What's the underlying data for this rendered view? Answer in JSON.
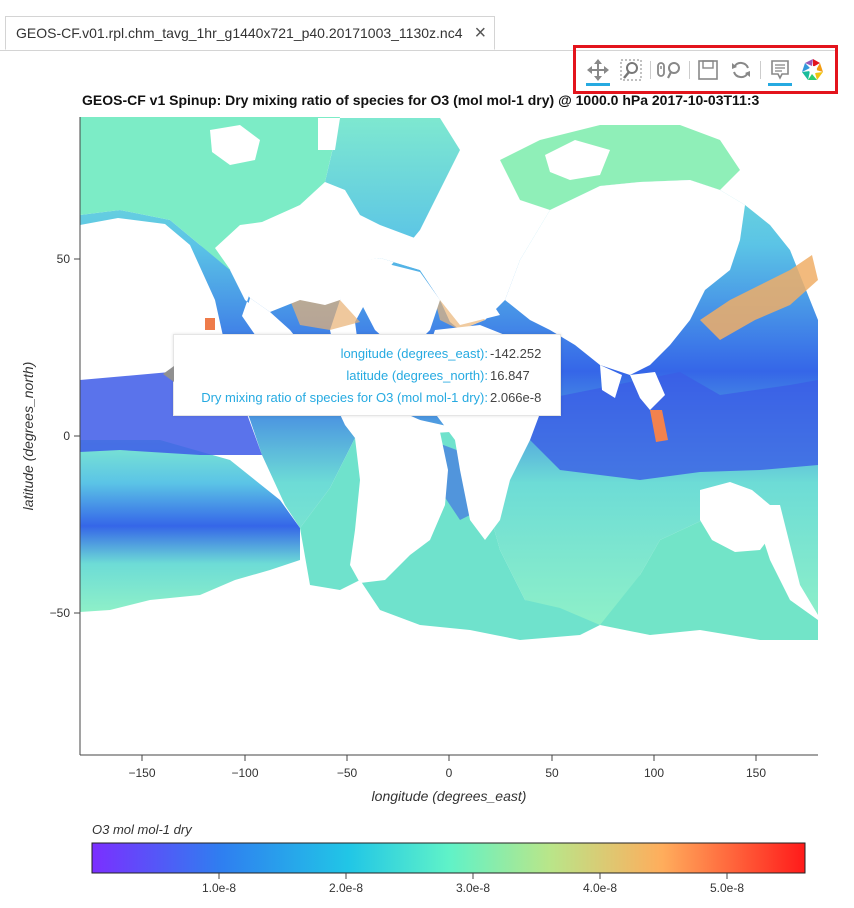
{
  "tab": {
    "title": "GEOS-CF.v01.rpl.chm_tavg_1hr_g1440x721_p40.20171003_1130z.nc4",
    "close": "×"
  },
  "toolbar": {
    "tools": [
      {
        "name": "pan-tool",
        "icon": "move-arrows-icon",
        "active": true
      },
      {
        "name": "box-zoom-tool",
        "icon": "box-zoom-icon",
        "active": false
      },
      {
        "name": "wheel-zoom-tool",
        "icon": "wheel-zoom-icon",
        "active": false
      },
      {
        "name": "save-tool",
        "icon": "save-icon",
        "active": false
      },
      {
        "name": "reset-tool",
        "icon": "reset-icon",
        "active": false
      },
      {
        "name": "hover-tool",
        "icon": "hover-tooltip-icon",
        "active": true
      },
      {
        "name": "bokeh-logo",
        "icon": "bokeh-logo-icon",
        "active": false
      }
    ],
    "highlight_color": "#e3141c",
    "active_color": "#26aae1"
  },
  "plot": {
    "title": "GEOS-CF v1 Spinup: Dry mixing ratio of species for O3 (mol mol-1 dry) @ 1000.0 hPa 2017-10-03T11:3",
    "xlabel": "longitude (degrees_east)",
    "ylabel": "latitude (degrees_north)",
    "x_ticks": [
      "−150",
      "−100",
      "−50",
      "0",
      "50",
      "100",
      "150"
    ],
    "y_ticks": [
      "50",
      "0",
      "−50"
    ]
  },
  "tooltip": {
    "rows": [
      {
        "key": "longitude (degrees_east):",
        "value": "-142.252"
      },
      {
        "key": "latitude (degrees_north):",
        "value": "16.847"
      },
      {
        "key": "Dry mixing ratio of species for O3 (mol mol-1 dry):",
        "value": "2.066e-8"
      }
    ]
  },
  "colorbar": {
    "title": "O3 mol mol-1 dry",
    "ticks": [
      "1.0e-8",
      "2.0e-8",
      "3.0e-8",
      "4.0e-8",
      "5.0e-8"
    ]
  },
  "chart_data": {
    "type": "heatmap",
    "title": "GEOS-CF v1 Spinup: Dry mixing ratio of species for O3 (mol mol-1 dry) @ 1000.0 hPa 2017-10-03T11:3",
    "xlabel": "longitude (degrees_east)",
    "ylabel": "latitude (degrees_north)",
    "xlim": [
      -180,
      180
    ],
    "ylim": [
      -90,
      90
    ],
    "x_ticks": [
      -150,
      -100,
      -50,
      0,
      50,
      100,
      150
    ],
    "y_ticks": [
      -50,
      0,
      50
    ],
    "colorbar": {
      "label": "O3 mol mol-1 dry",
      "range": [
        0.0,
        5.6e-08
      ],
      "ticks": [
        1e-08,
        2e-08,
        3e-08,
        4e-08,
        5e-08
      ],
      "colormap": "rainbow"
    },
    "hover": {
      "longitude": -142.252,
      "latitude": 16.847,
      "value": 2.066e-08
    }
  }
}
